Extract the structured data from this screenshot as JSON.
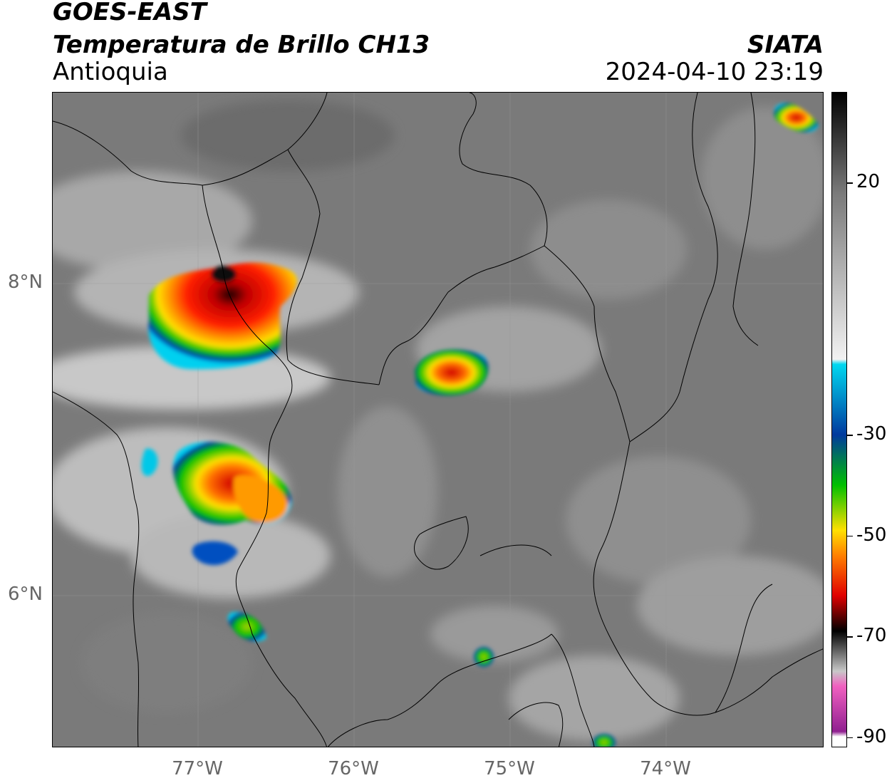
{
  "header": {
    "satellite": "GOES-EAST",
    "product": "Temperatura de Brillo CH13",
    "region": "Antioquia",
    "organization": "SIATA",
    "datetime": "2024-04-10 23:19"
  },
  "map": {
    "lat_ticks": [
      {
        "label": "8°N",
        "value": 8
      },
      {
        "label": "6°N",
        "value": 6
      }
    ],
    "lon_ticks": [
      {
        "label": "77°W",
        "value": -77
      },
      {
        "label": "76°W",
        "value": -76
      },
      {
        "label": "75°W",
        "value": -75
      },
      {
        "label": "74°W",
        "value": -74
      }
    ],
    "gridlines": true
  },
  "colorbar": {
    "ticks": [
      {
        "label": "20",
        "value": 20
      },
      {
        "label": "-30",
        "value": -30
      },
      {
        "label": "-50",
        "value": -50
      },
      {
        "label": "-70",
        "value": -70
      },
      {
        "label": "-90",
        "value": -90
      }
    ],
    "colors": {
      "warm_gray": "#7a7a7a",
      "cold_white": "#f2f2f2",
      "cyan": "#00d8f0",
      "blue": "#003a9e",
      "green": "#00c000",
      "yellow": "#ffe000",
      "orange": "#ff8000",
      "red": "#e00000",
      "black": "#000000",
      "pink": "#f060c0",
      "purple": "#902090"
    }
  }
}
